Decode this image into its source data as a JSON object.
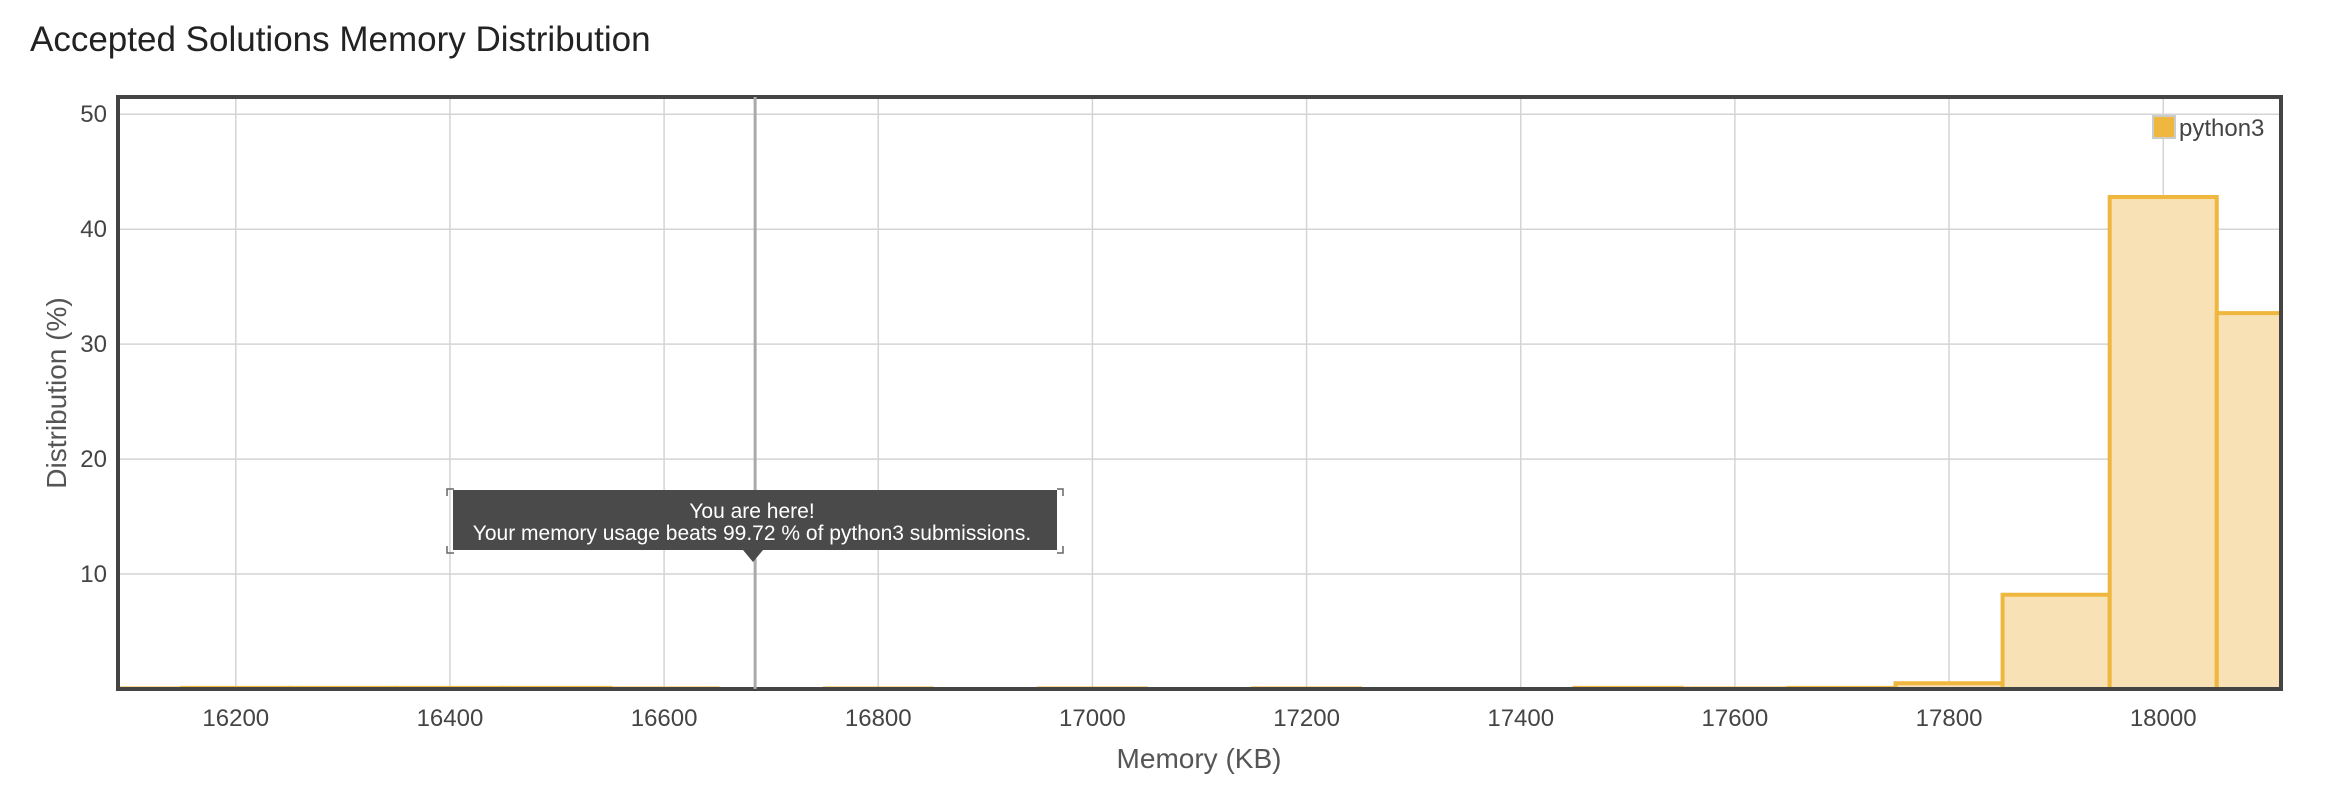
{
  "chart_data": {
    "type": "bar",
    "title": "Accepted Solutions Memory Distribution",
    "xlabel": "Memory (KB)",
    "ylabel": "Distribution (%)",
    "xlim": [
      16090,
      18110
    ],
    "ylim": [
      0,
      51.5
    ],
    "x_ticks": [
      16200,
      16400,
      16600,
      16800,
      17000,
      17200,
      17400,
      17600,
      17800,
      18000
    ],
    "y_ticks": [
      10,
      20,
      30,
      40,
      50
    ],
    "grid": true,
    "legend_position": "top-right",
    "bin_width": 100,
    "series": [
      {
        "name": "python3",
        "color": "#f0b73f",
        "fill": "#f8e1b5",
        "x": [
          16100,
          16200,
          16300,
          16400,
          16500,
          16600,
          16800,
          17000,
          17200,
          17500,
          17600,
          17700,
          17800,
          17900,
          18000,
          18100
        ],
        "values": [
          0.05,
          0.1,
          0.1,
          0.1,
          0.1,
          0.05,
          0.05,
          0.05,
          0.05,
          0.1,
          0.05,
          0.1,
          0.5,
          8.2,
          42.8,
          32.7
        ]
      }
    ],
    "annotation": {
      "x": 16685,
      "line1": "You are here!",
      "line2": "Your memory usage beats 99.72 % of python3 submissions."
    }
  }
}
